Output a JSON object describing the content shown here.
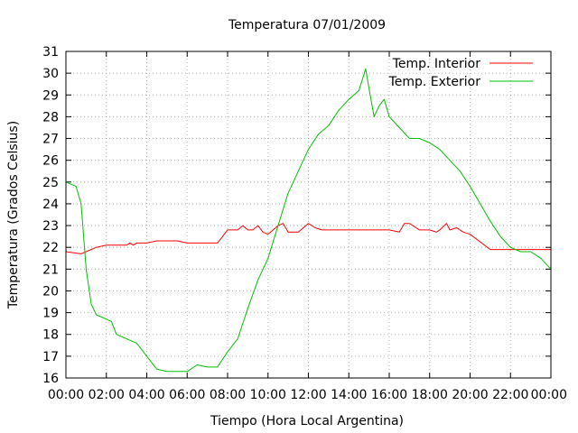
{
  "chart_data": {
    "type": "line",
    "title": "Temperatura 07/01/2009",
    "xlabel": "Tiempo (Hora Local Argentina)",
    "ylabel": "Temperatura (Grados Celsius)",
    "xlim": [
      "00:00",
      "24:00"
    ],
    "ylim": [
      16,
      31
    ],
    "x_ticks": [
      "00:00",
      "02:00",
      "04:00",
      "06:00",
      "08:00",
      "10:00",
      "12:00",
      "14:00",
      "16:00",
      "18:00",
      "20:00",
      "22:00",
      "00:00"
    ],
    "y_ticks": [
      16,
      17,
      18,
      19,
      20,
      21,
      22,
      23,
      24,
      25,
      26,
      27,
      28,
      29,
      30,
      31
    ],
    "grid": true,
    "legend_position": "top-right",
    "series": [
      {
        "name": "Temp. Interior",
        "color": "#ff0000",
        "x": [
          "00:00",
          "00:45",
          "01:00",
          "01:30",
          "02:00",
          "03:00",
          "03:10",
          "03:20",
          "03:30",
          "04:00",
          "04:30",
          "05:00",
          "05:30",
          "06:00",
          "06:30",
          "07:00",
          "07:30",
          "08:00",
          "08:30",
          "08:45",
          "09:00",
          "09:15",
          "09:30",
          "09:45",
          "10:00",
          "10:30",
          "10:45",
          "11:00",
          "11:30",
          "12:00",
          "12:20",
          "12:40",
          "13:00",
          "14:00",
          "14:30",
          "15:00",
          "16:00",
          "16:30",
          "16:45",
          "17:00",
          "17:30",
          "18:00",
          "18:20",
          "18:30",
          "18:50",
          "19:00",
          "19:20",
          "19:40",
          "20:00",
          "21:00",
          "21:30",
          "22:00",
          "22:30",
          "23:00",
          "23:30",
          "24:00"
        ],
        "values": [
          21.8,
          21.7,
          21.8,
          22.0,
          22.1,
          22.1,
          22.2,
          22.1,
          22.2,
          22.2,
          22.3,
          22.3,
          22.3,
          22.2,
          22.2,
          22.2,
          22.2,
          22.8,
          22.8,
          23.0,
          22.8,
          22.8,
          23.0,
          22.7,
          22.6,
          23.0,
          23.1,
          22.7,
          22.7,
          23.1,
          22.9,
          22.8,
          22.8,
          22.8,
          22.8,
          22.8,
          22.8,
          22.7,
          23.1,
          23.1,
          22.8,
          22.8,
          22.7,
          22.8,
          23.1,
          22.8,
          22.9,
          22.7,
          22.6,
          21.9,
          21.9,
          21.9,
          21.9,
          21.9,
          21.9,
          21.9
        ]
      },
      {
        "name": "Temp. Exterior",
        "color": "#00c000",
        "x": [
          "00:00",
          "00:30",
          "00:45",
          "01:00",
          "01:15",
          "01:30",
          "02:00",
          "02:15",
          "02:30",
          "03:00",
          "03:30",
          "04:00",
          "04:30",
          "05:00",
          "05:30",
          "06:00",
          "06:30",
          "07:00",
          "07:30",
          "08:00",
          "08:30",
          "09:00",
          "09:30",
          "10:00",
          "10:30",
          "11:00",
          "11:30",
          "12:00",
          "12:30",
          "13:00",
          "13:30",
          "14:00",
          "14:30",
          "14:50",
          "15:00",
          "15:15",
          "15:30",
          "15:45",
          "16:00",
          "16:30",
          "17:00",
          "17:30",
          "18:00",
          "18:30",
          "19:00",
          "19:30",
          "20:00",
          "20:30",
          "21:00",
          "21:30",
          "22:00",
          "22:30",
          "23:00",
          "23:30",
          "24:00"
        ],
        "values": [
          25.0,
          24.8,
          24.0,
          21.0,
          19.4,
          18.9,
          18.7,
          18.6,
          18.0,
          17.8,
          17.6,
          17.0,
          16.4,
          16.3,
          16.3,
          16.3,
          16.6,
          16.5,
          16.5,
          17.2,
          17.8,
          19.2,
          20.5,
          21.5,
          23.0,
          24.5,
          25.5,
          26.5,
          27.2,
          27.6,
          28.3,
          28.8,
          29.2,
          30.2,
          29.3,
          28.0,
          28.5,
          28.8,
          28.0,
          27.5,
          27.0,
          27.0,
          26.8,
          26.5,
          26.0,
          25.5,
          24.8,
          24.0,
          23.2,
          22.5,
          22.0,
          21.8,
          21.8,
          21.5,
          21.0
        ]
      }
    ]
  }
}
